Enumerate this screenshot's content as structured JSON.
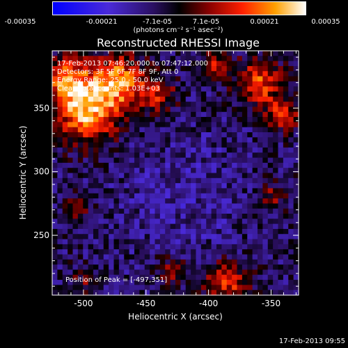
{
  "colorbar": {
    "ticks": [
      "-0.00035",
      "-0.00021",
      "-7.1e-05",
      "7.1e-05",
      "0.00021",
      "0.00035"
    ],
    "unit_label": "(photons cm⁻² s⁻¹ asec⁻²)",
    "range": [
      -0.00035,
      0.00035
    ]
  },
  "chart_data": {
    "type": "heatmap",
    "title": "Reconstructed RHESSI Image",
    "xlabel": "Heliocentric X (arcsec)",
    "ylabel": "Heliocentric Y (arcsec)",
    "xlim": [
      -525,
      -328
    ],
    "ylim": [
      203,
      395
    ],
    "xticks": [
      "-500",
      "-450",
      "-400",
      "-350"
    ],
    "xtick_values": [
      -500,
      -450,
      -400,
      -350
    ],
    "yticks": [
      "250",
      "300",
      "350"
    ],
    "ytick_values": [
      250,
      300,
      350
    ],
    "peak": [
      -497,
      351
    ],
    "colormap": "red-temperature diverging (blue-black-red-yellow-white)",
    "grid": false
  },
  "info": {
    "time_range": "17-Feb-2013 07:46:20.000 to 07:47:12.000",
    "detectors": "Detectors: 3F 5F 6F 7F 8F 9F, Att 0",
    "energy": "Energy Range: 25.0 - 50.0 keV",
    "clean": "Clean    Total counts: 1.03E+03",
    "peak_text": "Position of Peak = [-497,351]"
  },
  "footer": "17-Feb-2013 09:55"
}
